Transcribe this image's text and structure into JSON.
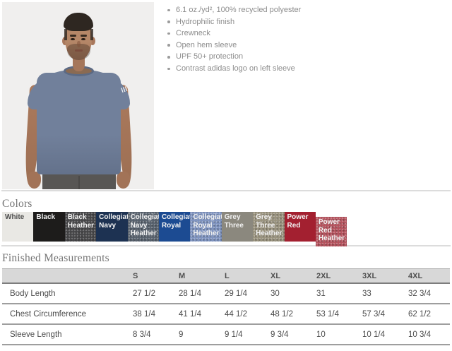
{
  "features": {
    "items": [
      "6.1 oz./yd², 100% recycled polyester",
      "Hydrophilic finish",
      "Crewneck",
      "Open hem sleeve",
      "UPF 50+ protection",
      "Contrast adidas logo on left sleeve"
    ]
  },
  "model_photo": {
    "background": "#f0efee",
    "shirt": "#71809b",
    "skin": "#ab7a5d",
    "hair": "#2e2721",
    "pants": "#585654"
  },
  "colors": {
    "heading": "Colors",
    "swatches": [
      {
        "name": "White",
        "hex": "#e9e8e4",
        "text": "#4d4d4d",
        "heather": false
      },
      {
        "name": "Black",
        "hex": "#1d1c1b",
        "text": "#f2f2f2",
        "heather": false
      },
      {
        "name": "Black Heather",
        "hex": "#454547",
        "text": "#f2f2f2",
        "heather": true
      },
      {
        "name": "Collegiate Navy",
        "hex": "#1d3252",
        "text": "#f2f2f2",
        "heather": false
      },
      {
        "name": "Collegiate Navy Heather",
        "hex": "#57616d",
        "text": "#f2f2f2",
        "heather": true
      },
      {
        "name": "Collegiate Royal",
        "hex": "#1c4b92",
        "text": "#f2f2f2",
        "heather": false
      },
      {
        "name": "Collegiate Royal Heather",
        "hex": "#7e93bf",
        "text": "#f2f2f2",
        "heather": true
      },
      {
        "name": "Grey Three",
        "hex": "#8b887e",
        "text": "#f2f2f2",
        "heather": false
      },
      {
        "name": "Grey Three Heather",
        "hex": "#99927e",
        "text": "#f2f2f2",
        "heather": true
      },
      {
        "name": "Power Red",
        "hex": "#a32030",
        "text": "#f2f2f2",
        "heather": false
      },
      {
        "name": "Power Red Heather",
        "hex": "#b5525d",
        "text": "#f2f2f2",
        "heather": true
      }
    ]
  },
  "measurements": {
    "heading": "Finished Measurements",
    "size_columns": [
      "S",
      "M",
      "L",
      "XL",
      "2XL",
      "3XL",
      "4XL"
    ],
    "rows": [
      {
        "label": "Body Length",
        "values": [
          "27 1/2",
          "28 1/4",
          "29 1/4",
          "30",
          "31",
          "33",
          "32 3/4"
        ]
      },
      {
        "label": "Chest Circumference",
        "values": [
          "38 1/4",
          "41 1/4",
          "44 1/2",
          "48 1/2",
          "53 1/4",
          "57 3/4",
          "62 1/2"
        ]
      },
      {
        "label": "Sleeve Length",
        "values": [
          "8 3/4",
          "9",
          "9 1/4",
          "9 3/4",
          "10",
          "10 1/4",
          "10 3/4"
        ]
      }
    ]
  }
}
